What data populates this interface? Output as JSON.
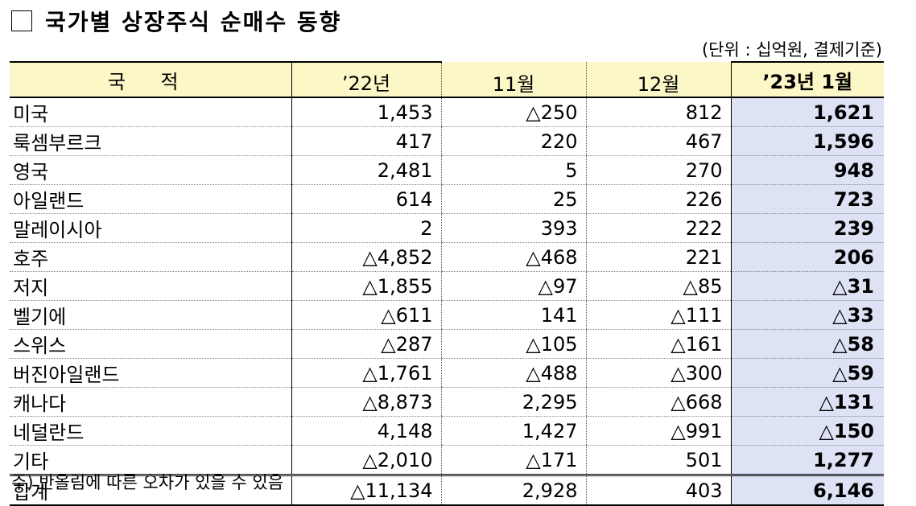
{
  "title": "국가별 상장주식 순매수 동향",
  "unit": "(단위 : 십억원, 결제기준)",
  "columns": {
    "country": "국 적",
    "y22": "’22년",
    "m11": "11월",
    "m12": "12월",
    "y23m1": "’23년 1월"
  },
  "rows": [
    {
      "country": "미국",
      "y22": "1,453",
      "m11": "△250",
      "m12": "812",
      "y23m1": "1,621"
    },
    {
      "country": "룩셈부르크",
      "y22": "417",
      "m11": "220",
      "m12": "467",
      "y23m1": "1,596"
    },
    {
      "country": "영국",
      "y22": "2,481",
      "m11": "5",
      "m12": "270",
      "y23m1": "948"
    },
    {
      "country": "아일랜드",
      "y22": "614",
      "m11": "25",
      "m12": "226",
      "y23m1": "723"
    },
    {
      "country": "말레이시아",
      "y22": "2",
      "m11": "393",
      "m12": "222",
      "y23m1": "239"
    },
    {
      "country": "호주",
      "y22": "△4,852",
      "m11": "△468",
      "m12": "221",
      "y23m1": "206"
    },
    {
      "country": "저지",
      "y22": "△1,855",
      "m11": "△97",
      "m12": "△85",
      "y23m1": "△31"
    },
    {
      "country": "벨기에",
      "y22": "△611",
      "m11": "141",
      "m12": "△111",
      "y23m1": "△33"
    },
    {
      "country": "스위스",
      "y22": "△287",
      "m11": "△105",
      "m12": "△161",
      "y23m1": "△58"
    },
    {
      "country": "버진아일랜드",
      "y22": "△1,761",
      "m11": "△488",
      "m12": "△300",
      "y23m1": "△59"
    },
    {
      "country": "캐나다",
      "y22": "△8,873",
      "m11": "2,295",
      "m12": "△668",
      "y23m1": "△131"
    },
    {
      "country": "네덜란드",
      "y22": "4,148",
      "m11": "1,427",
      "m12": "△991",
      "y23m1": "△150"
    },
    {
      "country": "기타",
      "y22": "△2,010",
      "m11": "△171",
      "m12": "501",
      "y23m1": "1,277"
    }
  ],
  "total": {
    "country": "합계",
    "y22": "△11,134",
    "m11": "2,928",
    "m12": "403",
    "y23m1": "6,146"
  },
  "note": "주) 반올림에 따른 오차가 있을 수 있음",
  "colors": {
    "header_bg": "#fbf7c6",
    "highlight_bg": "#dde3f5"
  }
}
